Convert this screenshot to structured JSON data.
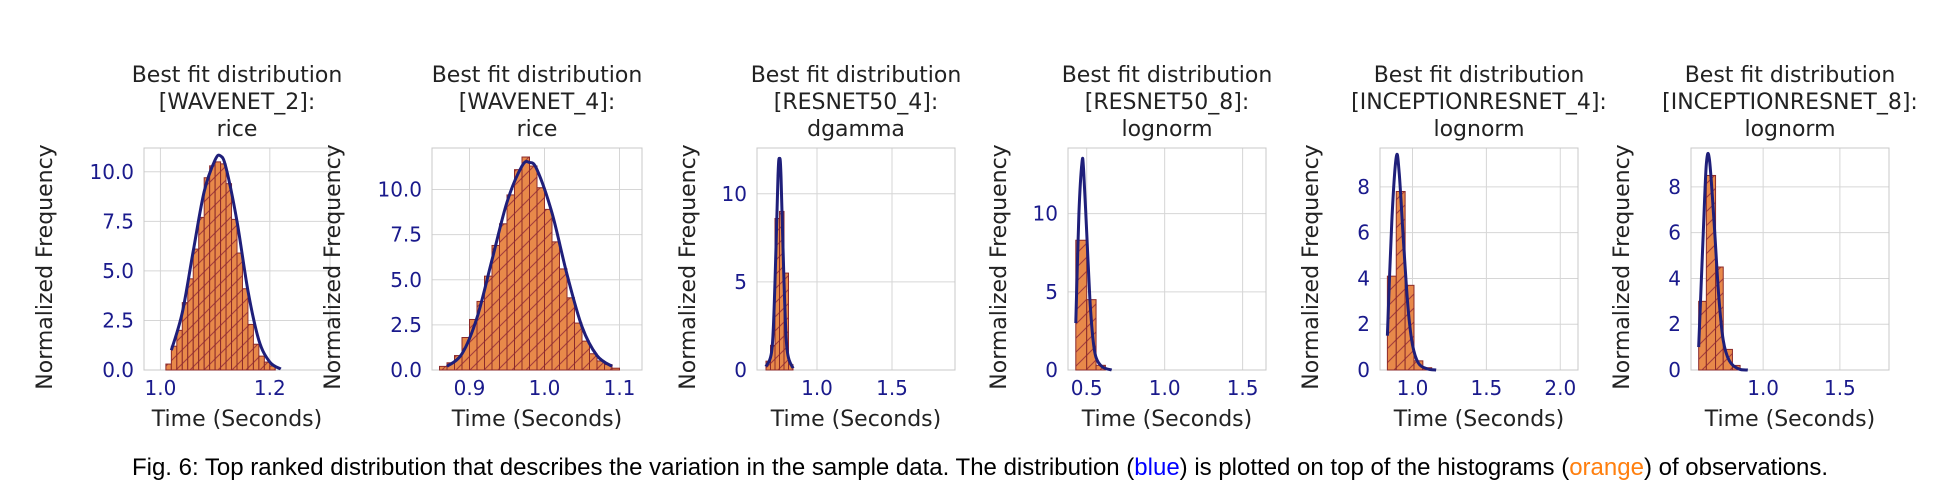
{
  "colors": {
    "bar_fill": "#e8894a",
    "bar_edge": "#8b2a2a",
    "hatch": "#a23c3c",
    "fit_line": "#1f1f7a",
    "tick_label": "#1a1a8c",
    "grid": "#d6d6d6",
    "text": "#222222",
    "caption_blue": "#0000ff",
    "caption_orange": "#ff7f0e"
  },
  "caption": {
    "before": "Fig. 6: Top ranked distribution that describes the variation in the sample data. The distribution (",
    "blue_word": "blue",
    "middle": ") is plotted on top of the histograms (",
    "orange_word": "orange",
    "after": ") of observations."
  },
  "chart_data": [
    {
      "type": "bar",
      "title": [
        "Best fit distribution",
        "[WAVENET_2]:",
        "rice"
      ],
      "xlabel": "Time (Seconds)",
      "ylabel": "Normalized Frequency",
      "xlim": [
        0.97,
        1.31
      ],
      "ylim": [
        0,
        11.2
      ],
      "xticks": [
        1.0,
        1.2
      ],
      "xtick_labels": [
        "1.0",
        "1.2"
      ],
      "yticks": [
        0,
        2.5,
        5,
        7.5,
        10
      ],
      "ytick_labels": [
        "0.0",
        "2.5",
        "5.0",
        "7.5",
        "10.0"
      ],
      "grid": true,
      "bins": [
        {
          "x0": 1.01,
          "x1": 1.02,
          "y": 0.3
        },
        {
          "x0": 1.02,
          "x1": 1.03,
          "y": 1.2
        },
        {
          "x0": 1.03,
          "x1": 1.04,
          "y": 2.0
        },
        {
          "x0": 1.04,
          "x1": 1.05,
          "y": 3.4
        },
        {
          "x0": 1.05,
          "x1": 1.06,
          "y": 4.6
        },
        {
          "x0": 1.06,
          "x1": 1.07,
          "y": 6.1
        },
        {
          "x0": 1.07,
          "x1": 1.08,
          "y": 7.7
        },
        {
          "x0": 1.08,
          "x1": 1.09,
          "y": 9.7
        },
        {
          "x0": 1.09,
          "x1": 1.1,
          "y": 10.3
        },
        {
          "x0": 1.1,
          "x1": 1.11,
          "y": 10.5
        },
        {
          "x0": 1.11,
          "x1": 1.12,
          "y": 10.4
        },
        {
          "x0": 1.12,
          "x1": 1.13,
          "y": 9.4
        },
        {
          "x0": 1.13,
          "x1": 1.14,
          "y": 7.6
        },
        {
          "x0": 1.14,
          "x1": 1.15,
          "y": 5.9
        },
        {
          "x0": 1.15,
          "x1": 1.16,
          "y": 4.1
        },
        {
          "x0": 1.16,
          "x1": 1.17,
          "y": 2.3
        },
        {
          "x0": 1.17,
          "x1": 1.18,
          "y": 1.3
        },
        {
          "x0": 1.18,
          "x1": 1.19,
          "y": 0.7
        },
        {
          "x0": 1.19,
          "x1": 1.2,
          "y": 0.4
        },
        {
          "x0": 1.2,
          "x1": 1.21,
          "y": 0.2
        }
      ],
      "fit": {
        "distribution": "rice",
        "x": [
          1.02,
          1.04,
          1.06,
          1.08,
          1.1,
          1.11,
          1.12,
          1.14,
          1.16,
          1.18,
          1.2,
          1.22
        ],
        "y": [
          1.0,
          2.9,
          6.0,
          9.0,
          10.6,
          10.8,
          10.2,
          7.5,
          4.0,
          1.5,
          0.4,
          0.05
        ]
      }
    },
    {
      "type": "bar",
      "title": [
        "Best fit distribution",
        "[WAVENET_4]:",
        "rice"
      ],
      "xlabel": "Time (Seconds)",
      "ylabel": "Normalized Frequency",
      "xlim": [
        0.85,
        1.13
      ],
      "ylim": [
        0,
        12.3
      ],
      "xticks": [
        0.9,
        1.0,
        1.1
      ],
      "xtick_labels": [
        "0.9",
        "1.0",
        "1.1"
      ],
      "yticks": [
        0,
        2.5,
        5,
        7.5,
        10
      ],
      "ytick_labels": [
        "0.0",
        "2.5",
        "5.0",
        "7.5",
        "10.0"
      ],
      "grid": true,
      "bins": [
        {
          "x0": 0.86,
          "x1": 0.87,
          "y": 0.2
        },
        {
          "x0": 0.87,
          "x1": 0.88,
          "y": 0.4
        },
        {
          "x0": 0.88,
          "x1": 0.89,
          "y": 0.8
        },
        {
          "x0": 0.89,
          "x1": 0.9,
          "y": 1.8
        },
        {
          "x0": 0.9,
          "x1": 0.91,
          "y": 2.8
        },
        {
          "x0": 0.91,
          "x1": 0.92,
          "y": 3.8
        },
        {
          "x0": 0.92,
          "x1": 0.93,
          "y": 5.2
        },
        {
          "x0": 0.93,
          "x1": 0.94,
          "y": 6.9
        },
        {
          "x0": 0.94,
          "x1": 0.95,
          "y": 8.1
        },
        {
          "x0": 0.95,
          "x1": 0.96,
          "y": 9.7
        },
        {
          "x0": 0.96,
          "x1": 0.97,
          "y": 11.1
        },
        {
          "x0": 0.97,
          "x1": 0.98,
          "y": 11.8
        },
        {
          "x0": 0.98,
          "x1": 0.99,
          "y": 11.3
        },
        {
          "x0": 0.99,
          "x1": 1.0,
          "y": 10.1
        },
        {
          "x0": 1.0,
          "x1": 1.01,
          "y": 8.9
        },
        {
          "x0": 1.01,
          "x1": 1.02,
          "y": 7.1
        },
        {
          "x0": 1.02,
          "x1": 1.03,
          "y": 5.6
        },
        {
          "x0": 1.03,
          "x1": 1.04,
          "y": 4.0
        },
        {
          "x0": 1.04,
          "x1": 1.05,
          "y": 2.6
        },
        {
          "x0": 1.05,
          "x1": 1.06,
          "y": 1.6
        },
        {
          "x0": 1.06,
          "x1": 1.07,
          "y": 0.9
        },
        {
          "x0": 1.07,
          "x1": 1.08,
          "y": 0.5
        },
        {
          "x0": 1.08,
          "x1": 1.09,
          "y": 0.3
        },
        {
          "x0": 1.09,
          "x1": 1.1,
          "y": 0.1
        }
      ],
      "fit": {
        "distribution": "rice",
        "x": [
          0.87,
          0.89,
          0.91,
          0.93,
          0.95,
          0.97,
          0.98,
          0.99,
          1.01,
          1.03,
          1.05,
          1.07,
          1.09
        ],
        "y": [
          0.2,
          0.9,
          2.9,
          6.1,
          9.3,
          11.3,
          11.5,
          11.1,
          8.7,
          5.3,
          2.4,
          0.8,
          0.2
        ]
      }
    },
    {
      "type": "bar",
      "title": [
        "Best fit distribution",
        "[RESNET50_4]:",
        "dgamma"
      ],
      "xlabel": "Time (Seconds)",
      "ylabel": "Normalized Frequency",
      "xlim": [
        0.6,
        1.92
      ],
      "ylim": [
        0,
        12.6
      ],
      "xticks": [
        1.0,
        1.5
      ],
      "xtick_labels": [
        "1.0",
        "1.5"
      ],
      "yticks": [
        0,
        5,
        10
      ],
      "ytick_labels": [
        "0",
        "5",
        "10"
      ],
      "grid": true,
      "bins": [
        {
          "x0": 0.66,
          "x1": 0.69,
          "y": 0.5
        },
        {
          "x0": 0.69,
          "x1": 0.72,
          "y": 1.4
        },
        {
          "x0": 0.72,
          "x1": 0.75,
          "y": 8.6
        },
        {
          "x0": 0.75,
          "x1": 0.78,
          "y": 9.0
        },
        {
          "x0": 0.78,
          "x1": 0.81,
          "y": 5.5
        },
        {
          "x0": 0.81,
          "x1": 0.84,
          "y": 0.3
        }
      ],
      "fit": {
        "distribution": "dgamma",
        "x": [
          0.66,
          0.7,
          0.72,
          0.74,
          0.75,
          0.76,
          0.78,
          0.8,
          0.84
        ],
        "y": [
          0.2,
          1.2,
          5.0,
          11.0,
          12.0,
          11.0,
          5.0,
          1.2,
          0.1
        ]
      }
    },
    {
      "type": "bar",
      "title": [
        "Best fit distribution",
        "[RESNET50_8]:",
        "lognorm"
      ],
      "xlabel": "Time (Seconds)",
      "ylabel": "Normalized Frequency",
      "xlim": [
        0.38,
        1.65
      ],
      "ylim": [
        0,
        14.2
      ],
      "xticks": [
        0.5,
        1.0,
        1.5
      ],
      "xtick_labels": [
        "0.5",
        "1.0",
        "1.5"
      ],
      "yticks": [
        0,
        5,
        10
      ],
      "ytick_labels": [
        "0",
        "5",
        "10"
      ],
      "grid": true,
      "bins": [
        {
          "x0": 0.43,
          "x1": 0.5,
          "y": 8.3
        },
        {
          "x0": 0.5,
          "x1": 0.56,
          "y": 4.5
        },
        {
          "x0": 0.56,
          "x1": 0.62,
          "y": 0.3
        }
      ],
      "fit": {
        "distribution": "lognorm",
        "x": [
          0.43,
          0.45,
          0.47,
          0.48,
          0.5,
          0.52,
          0.54,
          0.56,
          0.6,
          0.66
        ],
        "y": [
          3.0,
          10.0,
          13.3,
          12.8,
          8.8,
          4.6,
          2.0,
          0.8,
          0.2,
          0.0
        ]
      }
    },
    {
      "type": "bar",
      "title": [
        "Best fit distribution",
        "[INCEPTIONRESNET_4]:",
        "lognorm"
      ],
      "xlabel": "Time (Seconds)",
      "ylabel": "Normalized Frequency",
      "xlim": [
        0.78,
        2.12
      ],
      "ylim": [
        0,
        9.7
      ],
      "xticks": [
        1.0,
        1.5,
        2.0
      ],
      "xtick_labels": [
        "1.0",
        "1.5",
        "2.0"
      ],
      "yticks": [
        0,
        2,
        4,
        6,
        8
      ],
      "ytick_labels": [
        "0",
        "2",
        "4",
        "6",
        "8"
      ],
      "grid": true,
      "bins": [
        {
          "x0": 0.83,
          "x1": 0.89,
          "y": 4.1
        },
        {
          "x0": 0.89,
          "x1": 0.95,
          "y": 7.8
        },
        {
          "x0": 0.95,
          "x1": 1.01,
          "y": 3.7
        },
        {
          "x0": 1.01,
          "x1": 1.07,
          "y": 0.4
        },
        {
          "x0": 1.07,
          "x1": 1.13,
          "y": 0.1
        }
      ],
      "fit": {
        "distribution": "lognorm",
        "x": [
          0.83,
          0.86,
          0.89,
          0.91,
          0.94,
          0.97,
          1.0,
          1.04,
          1.1,
          1.16
        ],
        "y": [
          1.5,
          6.5,
          9.3,
          8.6,
          5.5,
          2.7,
          1.1,
          0.3,
          0.05,
          0.0
        ]
      }
    },
    {
      "type": "bar",
      "title": [
        "Best fit distribution",
        "[INCEPTIONRESNET_8]:",
        "lognorm"
      ],
      "xlabel": "Time (Seconds)",
      "ylabel": "Normalized Frequency",
      "xlim": [
        0.53,
        1.82
      ],
      "ylim": [
        0,
        9.7
      ],
      "xticks": [
        1.0,
        1.5
      ],
      "xtick_labels": [
        "1.0",
        "1.5"
      ],
      "yticks": [
        0,
        2,
        4,
        6,
        8
      ],
      "ytick_labels": [
        "0",
        "2",
        "4",
        "6",
        "8"
      ],
      "grid": true,
      "bins": [
        {
          "x0": 0.58,
          "x1": 0.63,
          "y": 3.0
        },
        {
          "x0": 0.63,
          "x1": 0.69,
          "y": 8.5
        },
        {
          "x0": 0.69,
          "x1": 0.74,
          "y": 4.5
        },
        {
          "x0": 0.74,
          "x1": 0.8,
          "y": 0.9
        },
        {
          "x0": 0.8,
          "x1": 0.85,
          "y": 0.2
        }
      ],
      "fit": {
        "distribution": "lognorm",
        "x": [
          0.58,
          0.61,
          0.63,
          0.65,
          0.68,
          0.71,
          0.74,
          0.78,
          0.84,
          0.9
        ],
        "y": [
          1.0,
          6.0,
          9.0,
          9.2,
          6.5,
          3.3,
          1.3,
          0.4,
          0.05,
          0.0
        ]
      }
    }
  ]
}
